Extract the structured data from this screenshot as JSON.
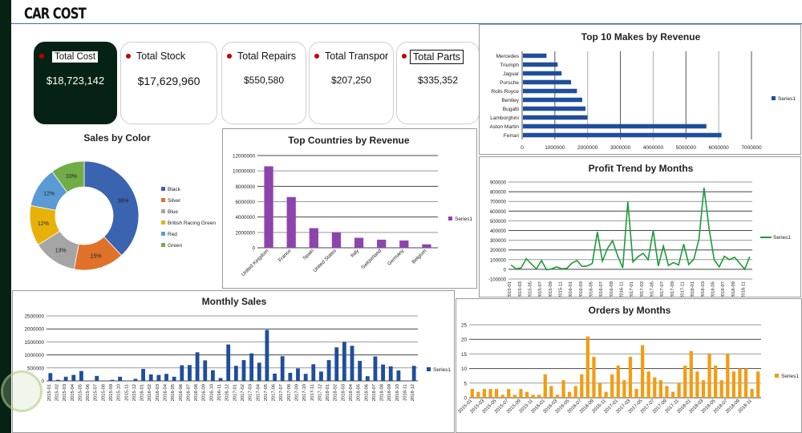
{
  "header": {
    "title": "CAR COST"
  },
  "kpis": [
    {
      "label": "Total Cost",
      "value": "$18,723,142"
    },
    {
      "label": "Total Stock",
      "value": "$17,629,960"
    },
    {
      "label": "Total Repairs",
      "value": "$550,580"
    },
    {
      "label": "Total Transpor",
      "value": "$207,250"
    },
    {
      "label": "Total Parts",
      "value": "$335,352"
    }
  ],
  "colors": {
    "sidebar": "#062215",
    "kpi_dot": "#c00000",
    "blue_bar": "#1f4e9c",
    "purple_bar": "#8e44ad",
    "green_line": "#1a9c3a",
    "orange_bar": "#f39c12"
  },
  "chart_data": [
    {
      "id": "makes",
      "type": "bar",
      "orientation": "horizontal",
      "title": "Top 10 Makes by Revenue",
      "categories": [
        "Mercedes",
        "Triumph",
        "Jaguar",
        "Porsche",
        "Rolls Royce",
        "Bentley",
        "Bugatti",
        "Lamborghini",
        "Aston Martin",
        "Ferrari"
      ],
      "series": [
        {
          "name": "Series1",
          "values": [
            720000,
            1060000,
            1180000,
            1470000,
            1650000,
            1810000,
            1910000,
            1970000,
            5600000,
            6060000
          ]
        }
      ],
      "xlim": [
        0,
        7000000
      ],
      "ticks": [
        "0",
        "1000000",
        "2000000",
        "3000000",
        "4000000",
        "5000000",
        "6000000",
        "7000000"
      ],
      "legend": "right",
      "grid": true
    },
    {
      "id": "color",
      "type": "pie",
      "title": "Sales by Color",
      "categories": [
        "Black",
        "Silver",
        "Blue",
        "British Racing Green",
        "Red",
        "Green"
      ],
      "values": [
        38,
        15,
        13,
        12,
        12,
        10
      ],
      "labels": [
        "38%",
        "15%",
        "13%",
        "12%",
        "12%",
        "10%"
      ],
      "slice_colors": [
        "#3a63b0",
        "#e0712a",
        "#a5a5a5",
        "#e8b10a",
        "#5b9bd5",
        "#70ad47"
      ],
      "donut": true,
      "legend": "right"
    },
    {
      "id": "countries",
      "type": "bar",
      "title": "Top Countries by Revenue",
      "categories": [
        "United Kingdom",
        "France",
        "Spain",
        "United States",
        "Italy",
        "Switzerland",
        "Germany",
        "Belgium"
      ],
      "series": [
        {
          "name": "Series1",
          "values": [
            10600000,
            6600000,
            2550000,
            2000000,
            1300000,
            1050000,
            950000,
            450000
          ]
        }
      ],
      "ylim": [
        0,
        12000000
      ],
      "ticks": [
        "0",
        "2000000",
        "4000000",
        "6000000",
        "8000000",
        "10000000",
        "12000000"
      ],
      "legend": "right",
      "grid": true
    },
    {
      "id": "profit",
      "type": "line",
      "title": "Profit Trend by Months",
      "x": [
        "2015-01",
        "2015-02",
        "2015-03",
        "2015-04",
        "2015-05",
        "2015-06",
        "2015-07",
        "2015-08",
        "2015-09",
        "2015-10",
        "2015-11",
        "2015-12",
        "2016-01",
        "2016-02",
        "2016-03",
        "2016-04",
        "2016-05",
        "2016-06",
        "2016-07",
        "2016-08",
        "2016-09",
        "2016-10",
        "2016-11",
        "2016-12",
        "2017-01",
        "2017-02",
        "2017-03",
        "2017-04",
        "2017-05",
        "2017-06",
        "2017-07",
        "2017-08",
        "2017-09",
        "2017-10",
        "2017-11",
        "2017-12",
        "2018-01",
        "2018-02",
        "2018-03",
        "2018-04",
        "2018-05",
        "2018-06",
        "2018-07",
        "2018-08",
        "2018-09",
        "2018-10",
        "2018-11",
        "2018-12"
      ],
      "series": [
        {
          "name": "Series1",
          "values": [
            45000,
            5000,
            15000,
            110000,
            55000,
            5000,
            90000,
            -5000,
            5000,
            25000,
            5000,
            10000,
            65000,
            90000,
            30000,
            35000,
            60000,
            385000,
            85000,
            215000,
            295000,
            140000,
            15000,
            700000,
            75000,
            130000,
            165000,
            100000,
            400000,
            35000,
            240000,
            40000,
            70000,
            45000,
            260000,
            50000,
            105000,
            310000,
            840000,
            420000,
            100000,
            25000,
            135000,
            100000,
            125000,
            65000,
            0,
            130000
          ]
        }
      ],
      "ylim": [
        -100000,
        900000
      ],
      "ticks": [
        "-100000",
        "0",
        "100000",
        "200000",
        "300000",
        "400000",
        "500000",
        "600000",
        "700000",
        "800000",
        "900000"
      ],
      "xtick_every": 2,
      "legend": "right",
      "grid": true
    },
    {
      "id": "monthly",
      "type": "bar",
      "title": "Monthly Sales",
      "categories": [
        "2015-01",
        "2015-02",
        "2015-03",
        "2015-04",
        "2015-05",
        "2015-06",
        "2015-07",
        "2015-08",
        "2015-09",
        "2015-10",
        "2015-11",
        "2015-12",
        "2016-01",
        "2016-02",
        "2016-03",
        "2016-04",
        "2016-05",
        "2016-06",
        "2016-07",
        "2016-08",
        "2016-09",
        "2016-10",
        "2016-11",
        "2016-12",
        "2017-01",
        "2017-02",
        "2017-03",
        "2017-04",
        "2017-05",
        "2017-06",
        "2017-07",
        "2017-08",
        "2017-09",
        "2017-10",
        "2017-11",
        "2017-12",
        "2018-01",
        "2018-02",
        "2018-03",
        "2018-04",
        "2018-05",
        "2018-06",
        "2018-07",
        "2018-08",
        "2018-09",
        "2018-10",
        "2018-11",
        "2018-12"
      ],
      "series": [
        {
          "name": "Series1",
          "values": [
            300000,
            40000,
            160000,
            230000,
            380000,
            15000,
            190000,
            15000,
            40000,
            160000,
            15000,
            80000,
            460000,
            250000,
            230000,
            270000,
            160000,
            600000,
            610000,
            1100000,
            790000,
            410000,
            110000,
            1400000,
            580000,
            800000,
            1060000,
            700000,
            1960000,
            280000,
            950000,
            310000,
            480000,
            270000,
            640000,
            360000,
            800000,
            1290000,
            1500000,
            1350000,
            770000,
            180000,
            940000,
            630000,
            560000,
            400000,
            10000,
            580000
          ]
        }
      ],
      "ylim": [
        0,
        2500000
      ],
      "ticks": [
        "0",
        "500000",
        "1000000",
        "1500000",
        "2000000",
        "2500000"
      ],
      "legend": "right",
      "grid": true
    },
    {
      "id": "orders",
      "type": "bar",
      "title": "Orders by Months",
      "categories": [
        "2015-01",
        "2015-02",
        "2015-03",
        "2015-04",
        "2015-05",
        "2015-06",
        "2015-07",
        "2015-08",
        "2015-09",
        "2015-10",
        "2015-11",
        "2015-12",
        "2016-01",
        "2016-02",
        "2016-03",
        "2016-04",
        "2016-05",
        "2016-06",
        "2016-07",
        "2016-08",
        "2016-09",
        "2016-10",
        "2016-11",
        "2016-12",
        "2017-01",
        "2017-02",
        "2017-03",
        "2017-04",
        "2017-05",
        "2017-06",
        "2017-07",
        "2017-08",
        "2017-09",
        "2017-10",
        "2017-11",
        "2017-12",
        "2018-01",
        "2018-02",
        "2018-03",
        "2018-04",
        "2018-05",
        "2018-06",
        "2018-07",
        "2018-08",
        "2018-09",
        "2018-10",
        "2018-11",
        "2018-12"
      ],
      "series": [
        {
          "name": "Series1",
          "values": [
            3,
            2,
            3,
            3,
            3,
            1,
            3,
            1,
            3,
            2,
            1,
            1,
            8,
            4,
            1,
            6,
            2,
            4,
            8,
            21,
            14,
            5,
            2,
            8,
            11,
            6,
            14,
            3,
            18,
            9,
            7,
            6,
            4,
            2,
            5,
            11,
            16,
            9,
            6,
            15,
            11,
            6,
            15,
            9,
            10,
            10,
            3,
            9
          ]
        }
      ],
      "ylim": [
        0,
        25
      ],
      "ticks": [
        "0",
        "5",
        "10",
        "15",
        "20",
        "25"
      ],
      "xtick_every": 2,
      "legend": "right",
      "grid": true
    }
  ]
}
